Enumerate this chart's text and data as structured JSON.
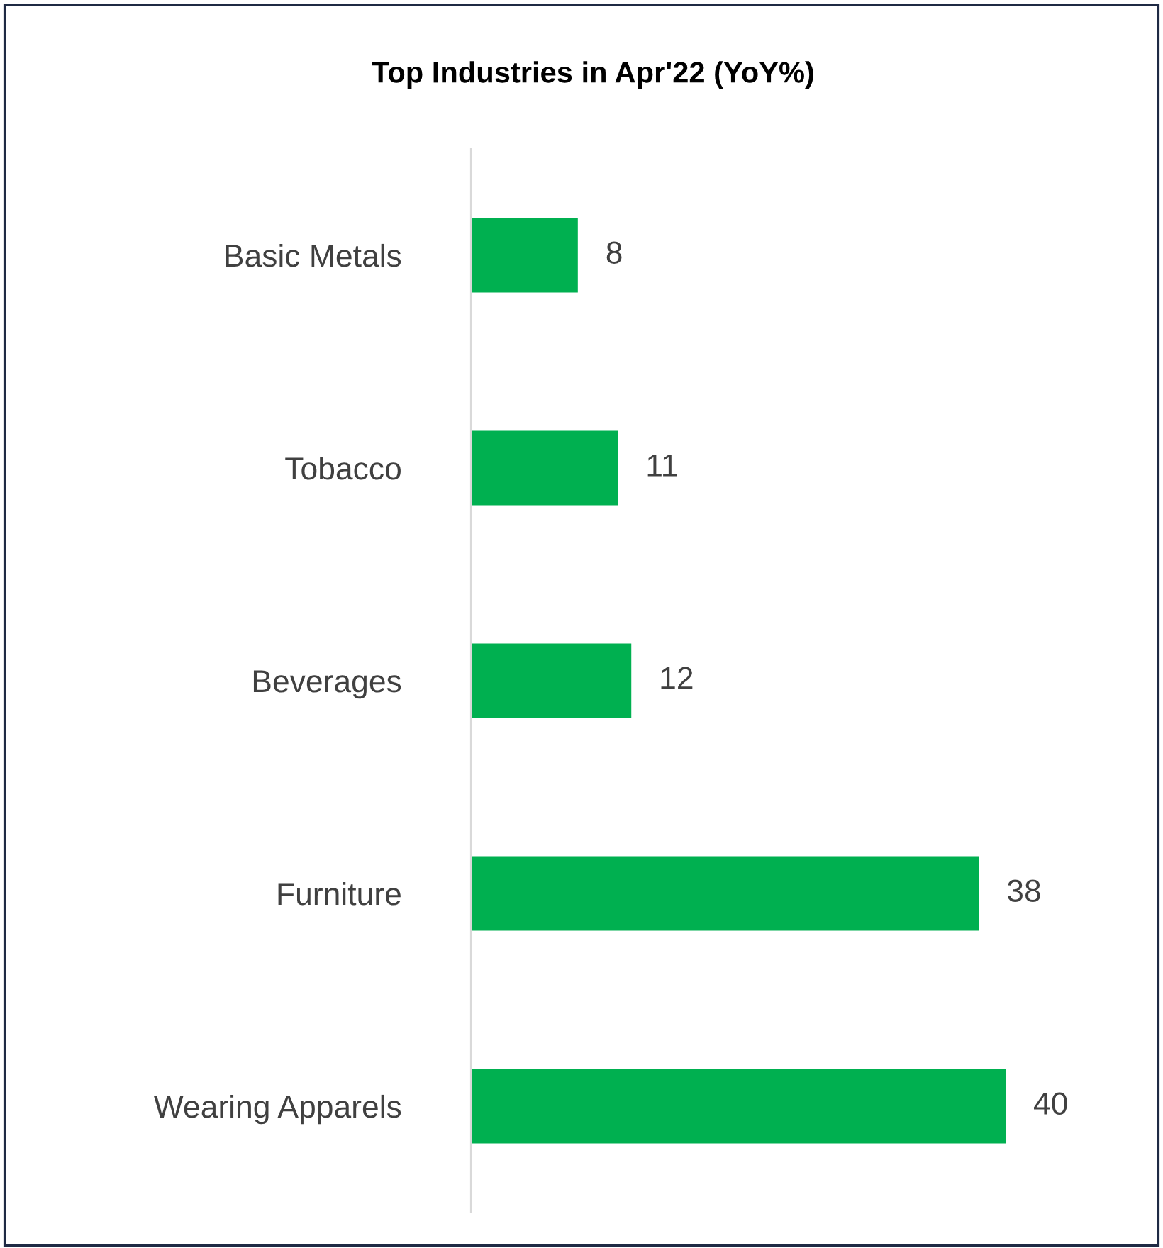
{
  "chart_data": {
    "type": "bar",
    "title": "Top Industries in Apr'22 (YoY%)",
    "orientation": "horizontal",
    "categories": [
      "Basic Metals",
      "Tobacco",
      "Beverages",
      "Furniture",
      "Wearing Apparels"
    ],
    "values": [
      8,
      11,
      12,
      38,
      40
    ],
    "color": "#00b050",
    "data_labels": true,
    "grid": false,
    "legend": false
  }
}
